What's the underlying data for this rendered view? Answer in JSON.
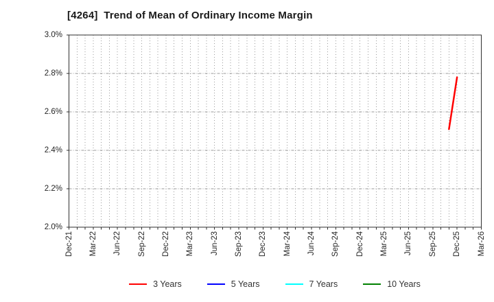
{
  "header": {
    "title": "[4264]  Trend of Mean of Ordinary Income Margin"
  },
  "chart_data": {
    "type": "line",
    "title": "[4264]  Trend of Mean of Ordinary Income Margin",
    "xlabel": "",
    "ylabel": "",
    "ylim": [
      2.0,
      3.0
    ],
    "grid": true,
    "legend_position": "bottom",
    "x_total_months": 51,
    "y_ticks": [
      {
        "label": "3.0%",
        "value": 3.0
      },
      {
        "label": "2.8%",
        "value": 2.8
      },
      {
        "label": "2.6%",
        "value": 2.6
      },
      {
        "label": "2.4%",
        "value": 2.4
      },
      {
        "label": "2.2%",
        "value": 2.2
      },
      {
        "label": "2.0%",
        "value": 2.0
      }
    ],
    "x_ticks": [
      {
        "label": "Dec-21",
        "month_offset": 0
      },
      {
        "label": "Mar-22",
        "month_offset": 3
      },
      {
        "label": "Jun-22",
        "month_offset": 6
      },
      {
        "label": "Sep-22",
        "month_offset": 9
      },
      {
        "label": "Dec-22",
        "month_offset": 12
      },
      {
        "label": "Mar-23",
        "month_offset": 15
      },
      {
        "label": "Jun-23",
        "month_offset": 18
      },
      {
        "label": "Sep-23",
        "month_offset": 21
      },
      {
        "label": "Dec-23",
        "month_offset": 24
      },
      {
        "label": "Mar-24",
        "month_offset": 27
      },
      {
        "label": "Jun-24",
        "month_offset": 30
      },
      {
        "label": "Sep-24",
        "month_offset": 33
      },
      {
        "label": "Dec-24",
        "month_offset": 36
      },
      {
        "label": "Mar-25",
        "month_offset": 39
      },
      {
        "label": "Jun-25",
        "month_offset": 42
      },
      {
        "label": "Sep-25",
        "month_offset": 45
      },
      {
        "label": "Dec-25",
        "month_offset": 48
      },
      {
        "label": "Mar-26",
        "month_offset": 51
      }
    ],
    "series": [
      {
        "name": "3 Years",
        "color": "#ff0000",
        "points": [
          {
            "x": "Nov-25",
            "month_offset": 47,
            "value": 2.51
          },
          {
            "x": "Dec-25",
            "month_offset": 48,
            "value": 2.78
          }
        ]
      },
      {
        "name": "5 Years",
        "color": "#0000ff",
        "points": []
      },
      {
        "name": "7 Years",
        "color": "#00ffff",
        "points": []
      },
      {
        "name": "10 Years",
        "color": "#008000",
        "points": []
      }
    ]
  },
  "styles": {
    "background": "#ffffff",
    "axis_color": "#2e2e2e",
    "grid_color": "#999999",
    "tick_label_color": "#262626",
    "title_color": "#191919",
    "legend_text_color": "#333333"
  }
}
